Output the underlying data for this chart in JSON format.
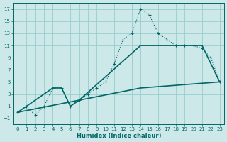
{
  "xlabel": "Humidex (Indice chaleur)",
  "xlim": [
    -0.5,
    23.5
  ],
  "ylim": [
    -2,
    18
  ],
  "yticks": [
    -1,
    1,
    3,
    5,
    7,
    9,
    11,
    13,
    15,
    17
  ],
  "xticks": [
    0,
    1,
    2,
    3,
    4,
    5,
    6,
    7,
    8,
    9,
    10,
    11,
    12,
    13,
    14,
    15,
    16,
    17,
    18,
    19,
    20,
    21,
    22,
    23
  ],
  "background_color": "#cce8e8",
  "grid_color": "#99cccc",
  "line_color": "#006666",
  "line1_x": [
    0,
    1,
    2,
    3,
    4,
    5,
    6,
    7,
    8,
    9,
    10,
    11,
    12,
    13,
    14,
    15,
    16,
    17,
    18,
    19,
    20,
    21,
    22,
    23
  ],
  "line1_y": [
    0,
    1,
    -0.5,
    1,
    4,
    4,
    1,
    2,
    3,
    4,
    5,
    8,
    12,
    13,
    17,
    16,
    13,
    12,
    11,
    11,
    11,
    10.5,
    9,
    5
  ],
  "line2_x": [
    0,
    4,
    5,
    6,
    7,
    14,
    20,
    21,
    23
  ],
  "line2_y": [
    0,
    4,
    4,
    1,
    2,
    11,
    11,
    11,
    5
  ],
  "line3_x": [
    0,
    7,
    14,
    23
  ],
  "line3_y": [
    0,
    2,
    4,
    5
  ]
}
